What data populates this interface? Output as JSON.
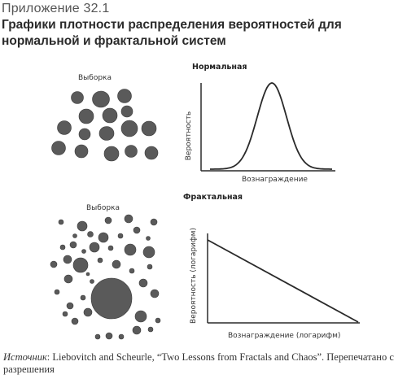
{
  "header": {
    "appendix": "Приложение 32.1",
    "title": "Графики плотности распределения вероятностей для нормальной и фрактальной систем"
  },
  "normal_section": {
    "heading": "Нормальная",
    "sample_label": "Выборка",
    "ylabel": "Вероятность",
    "xlabel": "Вознаграждение"
  },
  "fractal_section": {
    "heading": "Фрактальная",
    "sample_label": "Выборка",
    "ylabel": "Вероятность (логарифм)",
    "xlabel": "Вознаграждение (логарифм)"
  },
  "source": {
    "prefix": "Источник",
    "text": ": Liebovitch and Scheurle, “Two Lessons from Fractals and Chaos”. Перепечатано с разрешения"
  },
  "colors": {
    "circle_fill": "#5a5a5a",
    "circle_stroke": "#3a3a3a",
    "axis": "#2a2a2a"
  },
  "chart_data": [
    {
      "type": "line",
      "shape": "bell-curve",
      "title": "Нормальная",
      "xlabel": "Вознаграждение",
      "ylabel": "Вероятность"
    },
    {
      "type": "line",
      "shape": "straight-decreasing",
      "title": "Фрактальная",
      "xlabel": "Вознаграждение (логарифм)",
      "ylabel": "Вероятность (логарифм)"
    }
  ]
}
